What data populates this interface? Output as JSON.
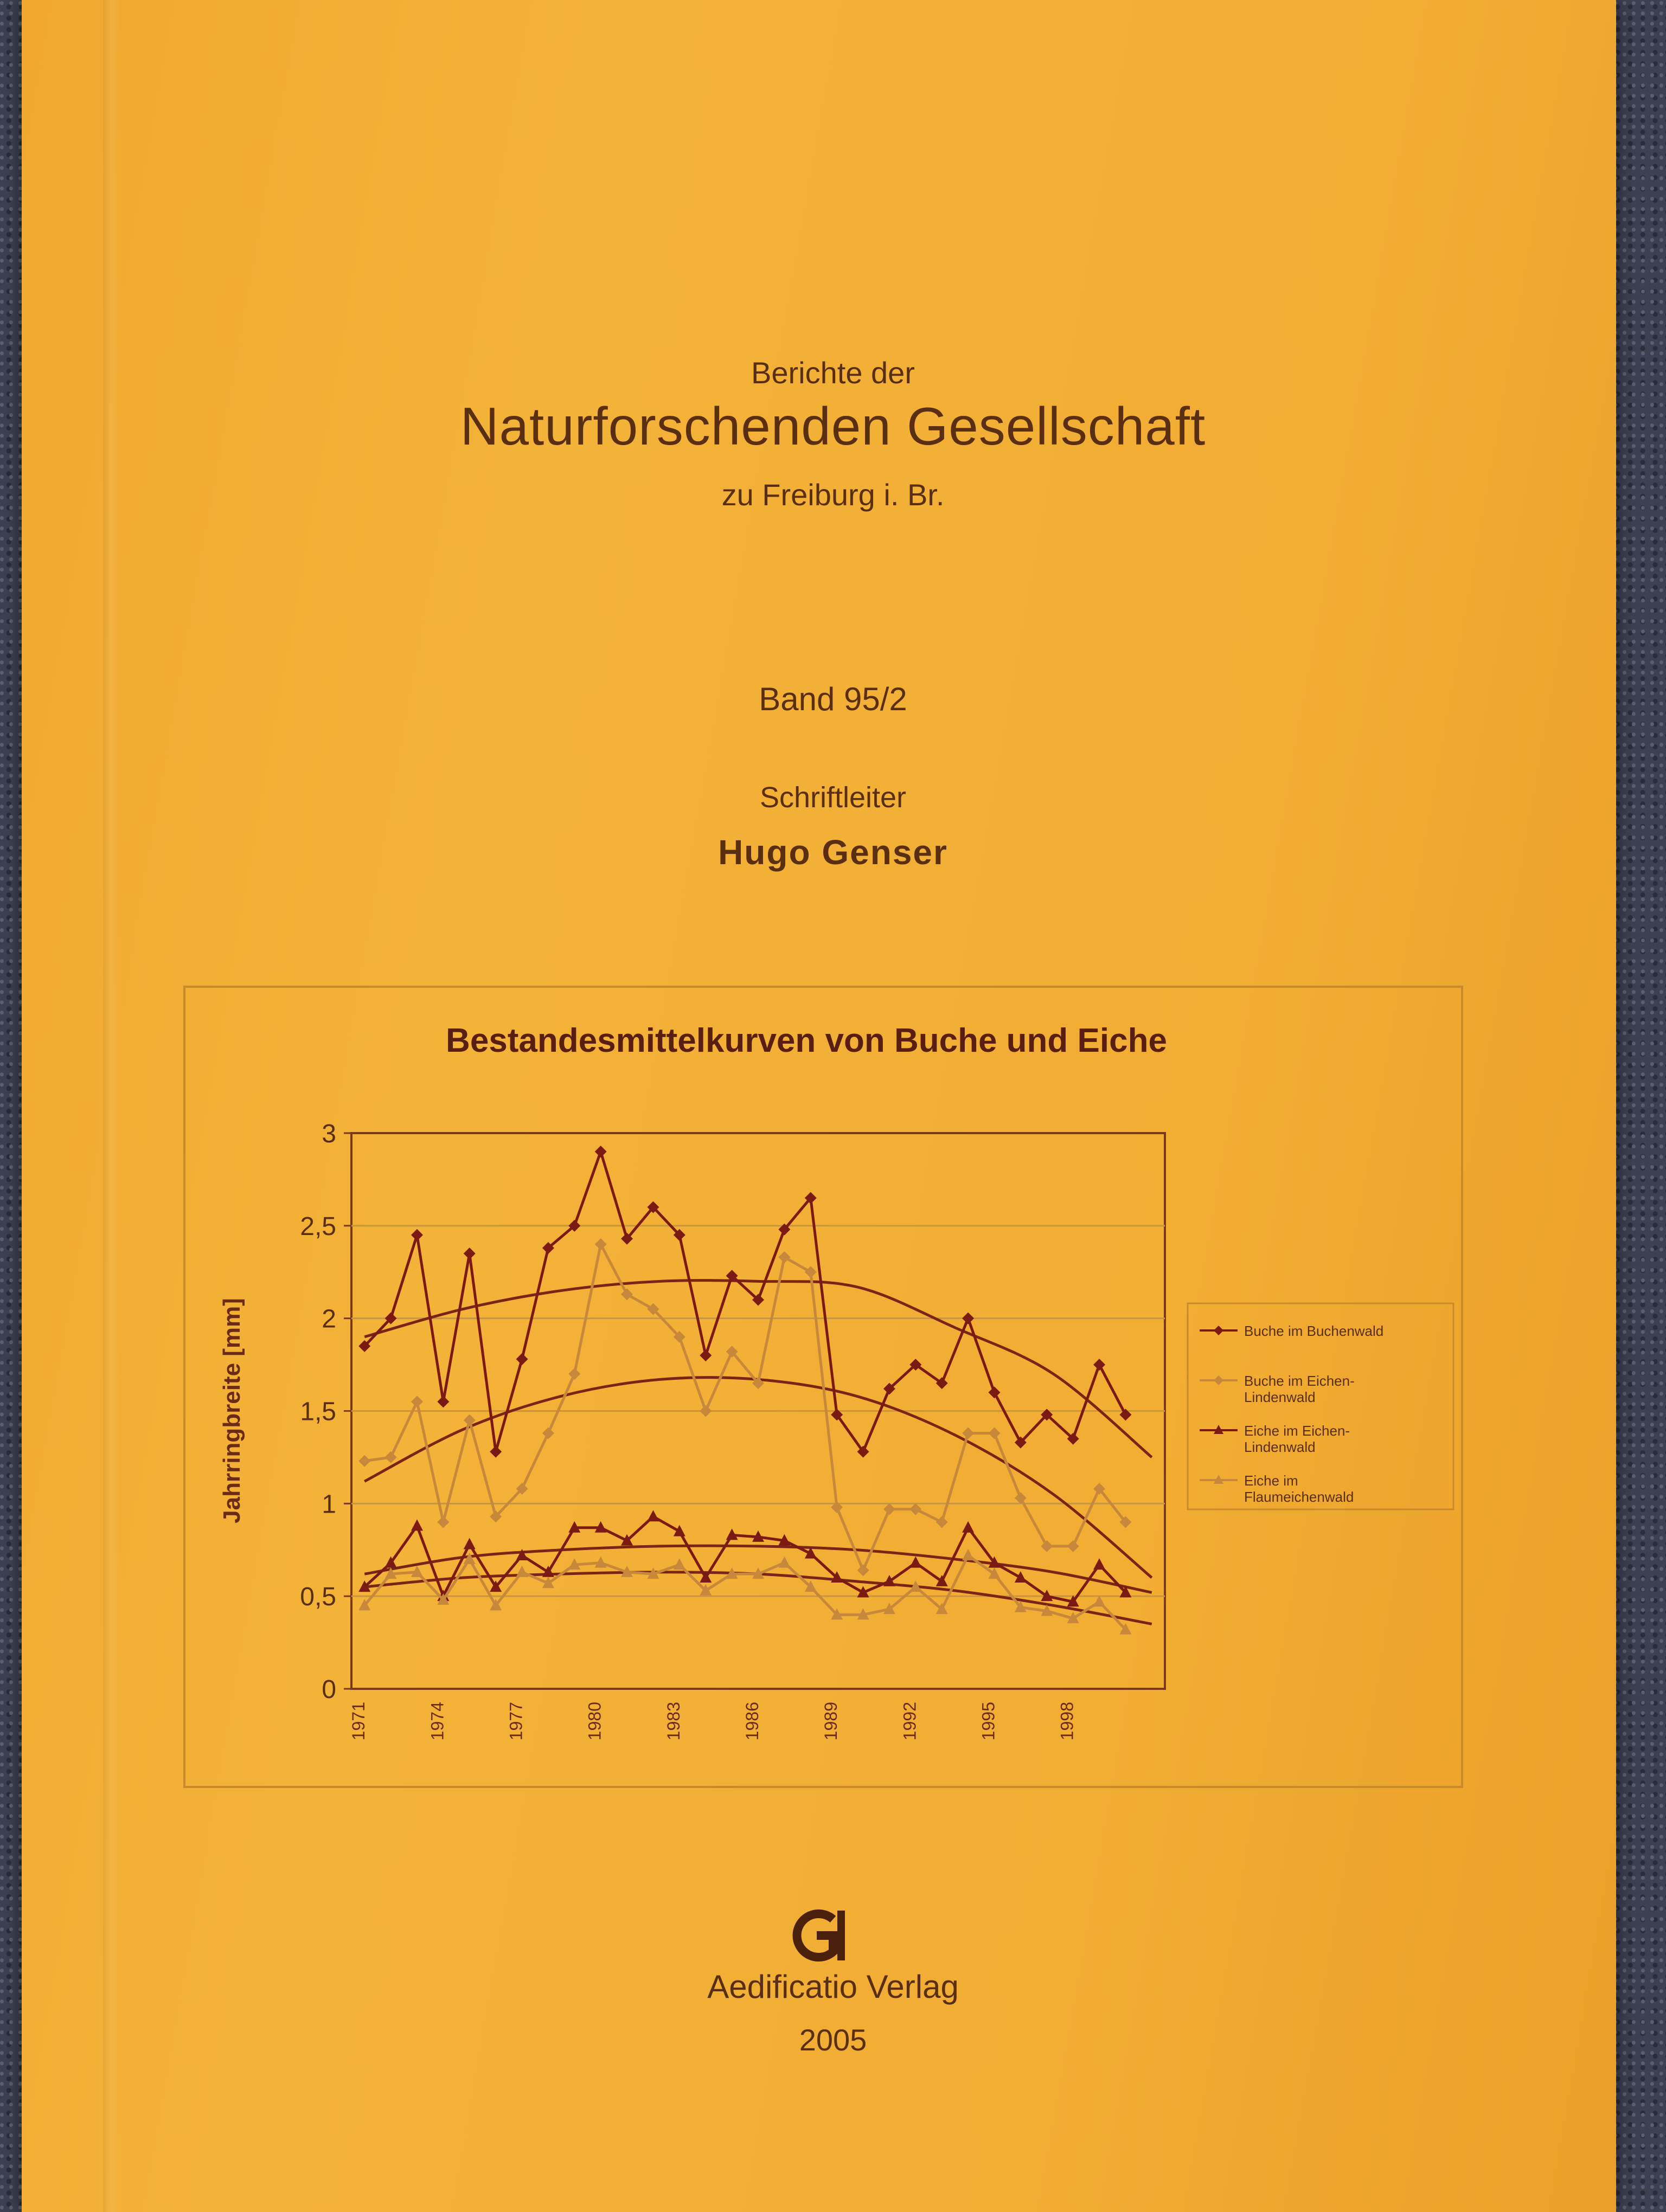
{
  "cover": {
    "series_prefix": "Berichte der",
    "society_name": "Naturforschenden Gesellschaft",
    "location": "zu Freiburg i. Br.",
    "volume": "Band 95/2",
    "editor_role": "Schriftleiter",
    "editor_name": "Hugo Genser",
    "publisher": "Aedificatio Verlag",
    "year": "2005",
    "publisher_logo_letters": "GI"
  },
  "colors": {
    "cover": "#f2ad33",
    "text": "#5a2e10",
    "series_dark": "#7a1a12",
    "series_light": "#c8883c"
  },
  "chart_data": {
    "type": "line",
    "title": "Bestandesmittelkurven von Buche und Eiche",
    "ylabel": "Jahrringbreite [mm]",
    "xlabel": "",
    "ylim": [
      0,
      3
    ],
    "yticks": [
      "0",
      "0,5",
      "1",
      "1,5",
      "2",
      "2,5",
      "3"
    ],
    "xtick_labels": [
      "1971",
      "1974",
      "1977",
      "1980",
      "1983",
      "1986",
      "1989",
      "1992",
      "1995",
      "1998"
    ],
    "grid": "horizontal",
    "legend_position": "right",
    "x": [
      1971,
      1972,
      1973,
      1974,
      1975,
      1976,
      1977,
      1978,
      1979,
      1980,
      1981,
      1982,
      1983,
      1984,
      1985,
      1986,
      1987,
      1988,
      1989,
      1990,
      1991,
      1992,
      1993,
      1994,
      1995,
      1996,
      1997,
      1998,
      1999,
      2000,
      2001
    ],
    "series": [
      {
        "name": "Buche im Buchenwald",
        "style": "dark",
        "marker": "diamond",
        "values": [
          1.85,
          2.0,
          2.45,
          1.55,
          2.35,
          1.28,
          1.78,
          2.38,
          2.5,
          2.9,
          2.43,
          2.6,
          2.45,
          1.8,
          2.23,
          2.1,
          2.48,
          2.65,
          1.48,
          1.28,
          1.62,
          1.75,
          1.65,
          2.0,
          1.6,
          1.33,
          1.48,
          1.35,
          1.75,
          1.48,
          null
        ]
      },
      {
        "name": "Buche im Eichen-Lindenwald",
        "style": "light",
        "marker": "diamond",
        "values": [
          1.23,
          1.25,
          1.55,
          0.9,
          1.45,
          0.93,
          1.08,
          1.38,
          1.7,
          2.4,
          2.13,
          2.05,
          1.9,
          1.5,
          1.82,
          1.65,
          2.33,
          2.25,
          0.98,
          0.64,
          0.97,
          0.97,
          0.9,
          1.38,
          1.38,
          1.03,
          0.77,
          0.77,
          1.08,
          0.9,
          null
        ]
      },
      {
        "name": "Eiche im Eichen-Lindenwald",
        "style": "dark",
        "marker": "triangle",
        "values": [
          0.55,
          0.68,
          0.88,
          0.5,
          0.78,
          0.55,
          0.72,
          0.63,
          0.87,
          0.87,
          0.8,
          0.93,
          0.85,
          0.6,
          0.83,
          0.82,
          0.8,
          0.73,
          0.6,
          0.52,
          0.58,
          0.68,
          0.58,
          0.87,
          0.68,
          0.6,
          0.5,
          0.47,
          0.67,
          0.52,
          null
        ]
      },
      {
        "name": "Eiche im Flaumeichenwald",
        "style": "light",
        "marker": "triangle",
        "values": [
          0.45,
          0.62,
          0.63,
          0.48,
          0.7,
          0.45,
          0.63,
          0.57,
          0.67,
          0.68,
          0.63,
          0.62,
          0.67,
          0.53,
          0.62,
          0.62,
          0.68,
          0.55,
          0.4,
          0.4,
          0.43,
          0.55,
          0.43,
          0.72,
          0.62,
          0.44,
          0.42,
          0.38,
          0.47,
          0.32,
          null
        ]
      }
    ],
    "trendlines": [
      {
        "series": "Buche im Buchenwald",
        "type": "polynomial",
        "values": [
          1.9,
          2.05,
          2.15,
          2.2,
          2.2,
          2.17,
          1.95,
          1.7,
          1.25
        ]
      },
      {
        "series": "Buche im Eichen-Lindenwald",
        "type": "polynomial",
        "values": [
          1.12,
          1.4,
          1.58,
          1.67,
          1.67,
          1.58,
          1.37,
          1.05,
          0.6
        ]
      },
      {
        "series": "Eiche im Eichen-Lindenwald",
        "type": "polynomial",
        "values": [
          0.62,
          0.71,
          0.75,
          0.77,
          0.77,
          0.75,
          0.7,
          0.63,
          0.52
        ]
      },
      {
        "series": "Eiche im Flaumeichenwald",
        "type": "polynomial",
        "values": [
          0.55,
          0.6,
          0.62,
          0.63,
          0.62,
          0.58,
          0.53,
          0.45,
          0.35
        ]
      }
    ]
  }
}
